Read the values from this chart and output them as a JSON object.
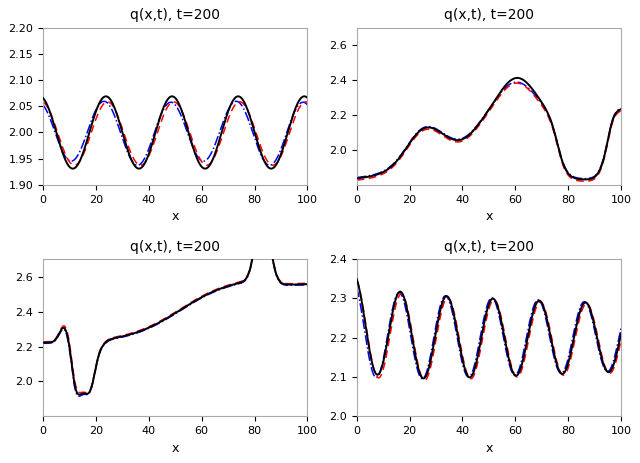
{
  "title": "q(x,t), t=200",
  "xlabel": "x",
  "figsize": [
    6.4,
    4.63
  ],
  "dpi": 100,
  "subplots": [
    {
      "ylim": [
        1.9,
        2.2
      ],
      "yticks": [
        1.9,
        1.95,
        2.0,
        2.05,
        2.1,
        2.15,
        2.2
      ]
    },
    {
      "ylim": [
        1.8,
        2.7
      ],
      "yticks": [
        2.0,
        2.2,
        2.4,
        2.6
      ]
    },
    {
      "ylim": [
        1.8,
        2.7
      ],
      "yticks": [
        2.0,
        2.2,
        2.4,
        2.6
      ]
    },
    {
      "ylim": [
        2.0,
        2.4
      ],
      "yticks": [
        2.0,
        2.1,
        2.2,
        2.3,
        2.4
      ]
    }
  ]
}
